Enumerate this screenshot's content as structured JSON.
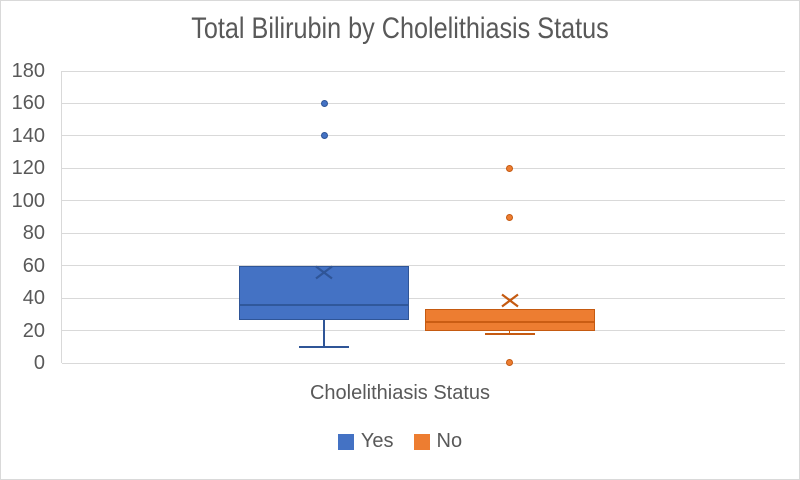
{
  "chart_data": {
    "type": "boxplot",
    "title": "Total Bilirubin by Cholelithiasis Status",
    "xlabel": "Cholelithiasis Status",
    "ylabel": "",
    "ylim": [
      0,
      180
    ],
    "ytick_step": 20,
    "yticks": [
      0,
      20,
      40,
      60,
      80,
      100,
      120,
      140,
      160,
      180
    ],
    "grid": true,
    "legend_position": "bottom",
    "categories": [
      "Yes",
      "No"
    ],
    "series": [
      {
        "name": "Yes",
        "fill": "#4472C4",
        "stroke": "#2F5597",
        "whisker_min": 10,
        "q1": 26.5,
        "median": 35.5,
        "q3": 59.5,
        "mean": 56,
        "outliers": [
          140,
          160
        ]
      },
      {
        "name": "No",
        "fill": "#ED7D31",
        "stroke": "#C55A11",
        "whisker_min": 18,
        "q1": 19.5,
        "median": 25.5,
        "q3": 33.5,
        "mean": 38.5,
        "outliers": [
          0.5,
          90,
          120
        ]
      }
    ]
  },
  "colors": {
    "text": "#595959",
    "gridline": "#D9D9D9",
    "background": "#FFFFFF"
  }
}
